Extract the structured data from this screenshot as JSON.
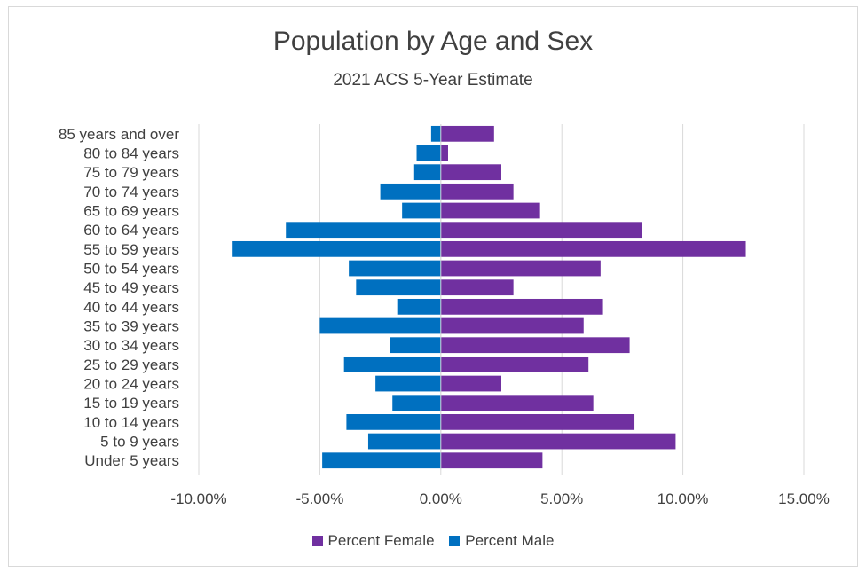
{
  "chart_data": {
    "type": "bar",
    "orientation": "horizontal",
    "title": "Population by Age and Sex",
    "subtitle": "2021 ACS 5-Year Estimate",
    "categories": [
      "85 years and over",
      "80 to 84 years",
      "75 to 79 years",
      "70 to 74 years",
      "65 to 69 years",
      "60 to 64 years",
      "55 to 59 years",
      "50 to 54 years",
      "45 to 49 years",
      "40 to 44 years",
      "35 to 39 years",
      "30 to 34 years",
      "25 to 29 years",
      "20 to 24 years",
      "15 to 19 years",
      "10 to 14 years",
      "5 to 9 years",
      "Under 5 years"
    ],
    "series": [
      {
        "name": "Percent Female",
        "color": "#7030a0",
        "values": [
          2.2,
          0.3,
          2.5,
          3.0,
          4.1,
          8.3,
          12.6,
          6.6,
          3.0,
          6.7,
          5.9,
          7.8,
          6.1,
          2.5,
          6.3,
          8.0,
          9.7,
          4.2
        ]
      },
      {
        "name": "Percent Male",
        "color": "#0070c0",
        "values": [
          -0.4,
          -1.0,
          -1.1,
          -2.5,
          -1.6,
          -6.4,
          -8.6,
          -3.8,
          -3.5,
          -1.8,
          -5.0,
          -2.1,
          -4.0,
          -2.7,
          -2.0,
          -3.9,
          -3.0,
          -4.9
        ]
      }
    ],
    "xlim": [
      -10,
      15
    ],
    "x_ticks": [
      "-10.00%",
      "-5.00%",
      "0.00%",
      "5.00%",
      "10.00%",
      "15.00%"
    ],
    "x_tick_values": [
      -10,
      -5,
      0,
      5,
      10,
      15
    ],
    "grid": true,
    "legend_position": "bottom",
    "legend": [
      "Percent Female",
      "Percent Male"
    ]
  }
}
